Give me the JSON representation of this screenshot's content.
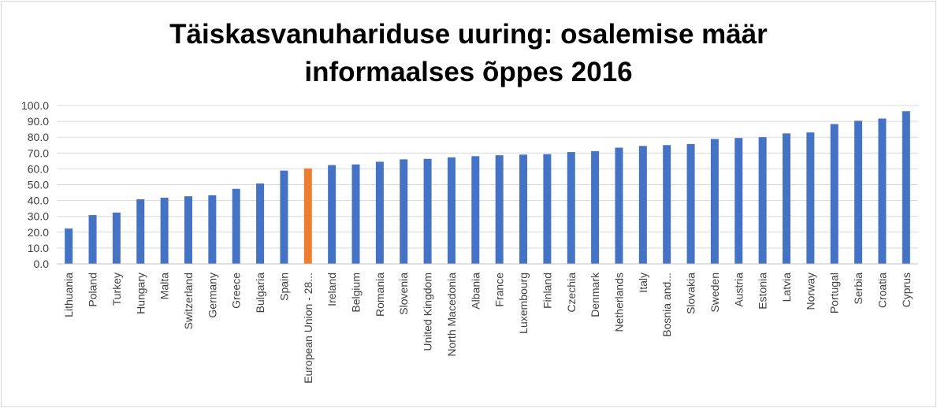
{
  "chart_data": {
    "type": "bar",
    "title_line1": "Täiskasvanuhariduse uuring: osalemise määr",
    "title_line2": "informaalses õppes 2016",
    "xlabel": "",
    "ylabel": "",
    "ylim": [
      0,
      100
    ],
    "ytick_step": 10,
    "ytick_labels": [
      "0.0",
      "10.0",
      "20.0",
      "30.0",
      "40.0",
      "50.0",
      "60.0",
      "70.0",
      "80.0",
      "90.0",
      "100.0"
    ],
    "grid": true,
    "legend": "none",
    "categories": [
      "Lithuania",
      "Poland",
      "Turkey",
      "Hungary",
      "Malta",
      "Switzerland",
      "Germany",
      "Greece",
      "Bulgaria",
      "Spain",
      "European Union - 28...",
      "Ireland",
      "Belgium",
      "Romania",
      "Slovenia",
      "United Kingdom",
      "North Macedonia",
      "Albania",
      "France",
      "Luxembourg",
      "Finland",
      "Czechia",
      "Denmark",
      "Netherlands",
      "Italy",
      "Bosnia and...",
      "Slovakia",
      "Sweden",
      "Austria",
      "Estonia",
      "Latvia",
      "Norway",
      "Portugal",
      "Serbia",
      "Croatia",
      "Cyprus"
    ],
    "values": [
      22.3,
      30.8,
      32.4,
      40.8,
      41.8,
      42.7,
      43.3,
      47.4,
      50.8,
      58.9,
      60.3,
      62.4,
      62.8,
      64.5,
      66.0,
      66.3,
      67.3,
      68.0,
      68.6,
      69.0,
      69.3,
      70.6,
      71.2,
      73.4,
      74.5,
      75.0,
      75.7,
      78.9,
      79.5,
      80.0,
      82.4,
      83.0,
      88.3,
      90.4,
      91.8,
      96.4
    ],
    "highlight_index": 10,
    "colors": {
      "bar": "#4472C4",
      "highlight": "#ED7D31",
      "grid": "#D9D9D9",
      "axis": "#BFBFBF",
      "text": "#404040",
      "title": "#000000"
    }
  }
}
